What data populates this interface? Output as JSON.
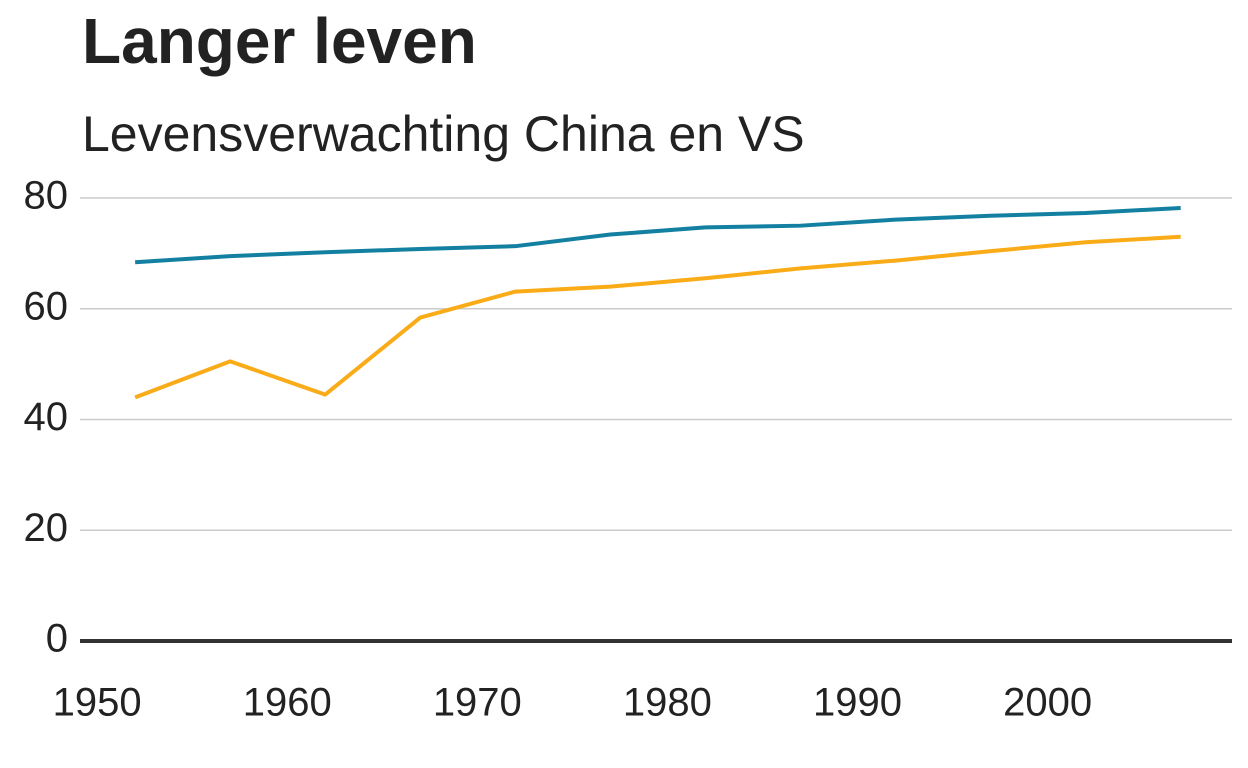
{
  "chart_data": {
    "type": "line",
    "title": "Langer leven",
    "subtitle": "Levensverwachting China en VS",
    "x": [
      1952,
      1957,
      1962,
      1967,
      1972,
      1977,
      1982,
      1987,
      1992,
      1997,
      2002,
      2007
    ],
    "series": [
      {
        "color": "#1380A1",
        "values": [
          68.4,
          69.5,
          70.2,
          70.8,
          71.3,
          73.4,
          74.7,
          75.0,
          76.1,
          76.8,
          77.3,
          78.2
        ]
      },
      {
        "color": "#FAAB18",
        "values": [
          44.0,
          50.5,
          44.5,
          58.4,
          63.1,
          64.0,
          65.5,
          67.3,
          68.7,
          70.4,
          72.0,
          73.0
        ]
      }
    ],
    "xlim": [
      1949.1,
      2009.7
    ],
    "xticks": [
      1950,
      1960,
      1970,
      1980,
      1990,
      2000
    ],
    "ylim": [
      0,
      80
    ],
    "yticks": [
      0,
      20,
      40,
      60,
      80
    ],
    "grid": true
  }
}
